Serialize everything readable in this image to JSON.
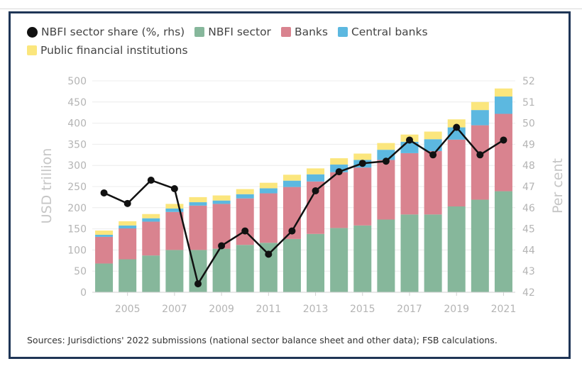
{
  "chart_data": {
    "type": "bar",
    "stacked": true,
    "categories": [
      "2004",
      "2005",
      "2006",
      "2007",
      "2008",
      "2009",
      "2010",
      "2011",
      "2012",
      "2013",
      "2014",
      "2015",
      "2016",
      "2017",
      "2018",
      "2019",
      "2020",
      "2021"
    ],
    "x_tick_labels": [
      "2005",
      "2007",
      "2009",
      "2011",
      "2013",
      "2015",
      "2017",
      "2019",
      "2021"
    ],
    "series": [
      {
        "name": "NBFI sector",
        "color": "#86b79b",
        "values": [
          68,
          78,
          87,
          100,
          100,
          103,
          112,
          117,
          126,
          138,
          152,
          158,
          172,
          184,
          184,
          203,
          219,
          239
        ]
      },
      {
        "name": "Banks",
        "color": "#d9838f",
        "values": [
          63,
          73,
          80,
          90,
          105,
          106,
          110,
          117,
          123,
          124,
          132,
          137,
          141,
          145,
          150,
          158,
          176,
          183
        ]
      },
      {
        "name": "Central banks",
        "color": "#5cb8e0",
        "values": [
          5,
          7,
          8,
          8,
          8,
          8,
          10,
          12,
          15,
          17,
          18,
          18,
          24,
          27,
          28,
          29,
          36,
          41
        ]
      },
      {
        "name": "Public financial institutions",
        "color": "#fbe67d",
        "values": [
          10,
          10,
          10,
          11,
          12,
          12,
          12,
          13,
          14,
          14,
          15,
          15,
          16,
          17,
          18,
          19,
          19,
          19
        ]
      }
    ],
    "line_series": {
      "name": "NBFI sector share (%, rhs)",
      "color": "#111111",
      "axis": "right",
      "values": [
        46.7,
        46.2,
        47.3,
        46.9,
        42.4,
        44.2,
        44.9,
        43.8,
        44.9,
        46.8,
        47.7,
        48.1,
        48.2,
        49.2,
        48.5,
        49.8,
        48.5,
        49.2
      ]
    },
    "ylabel": "USD trillion",
    "y2label": "Per cent",
    "ylim": [
      0,
      500
    ],
    "y_ticks": [
      "0",
      "50",
      "100",
      "150",
      "200",
      "250",
      "300",
      "350",
      "400",
      "450",
      "500"
    ],
    "y2lim": [
      42,
      52
    ],
    "y2_ticks": [
      "42",
      "43",
      "44",
      "45",
      "46",
      "47",
      "48",
      "49",
      "50",
      "51",
      "52"
    ],
    "grid": true,
    "legend_position": "top-left"
  },
  "legend": [
    {
      "label": "NBFI sector share (%, rhs)",
      "color": "#111111",
      "shape": "round"
    },
    {
      "label": "NBFI sector",
      "color": "#86b79b",
      "shape": "square"
    },
    {
      "label": "Banks",
      "color": "#d9838f",
      "shape": "square"
    },
    {
      "label": "Central banks",
      "color": "#5cb8e0",
      "shape": "square"
    },
    {
      "label": "Public financial institutions",
      "color": "#fbe67d",
      "shape": "square"
    }
  ],
  "source_note": "Sources: Jurisdictions' 2022 submissions (national sector balance sheet and other data); FSB calculations."
}
